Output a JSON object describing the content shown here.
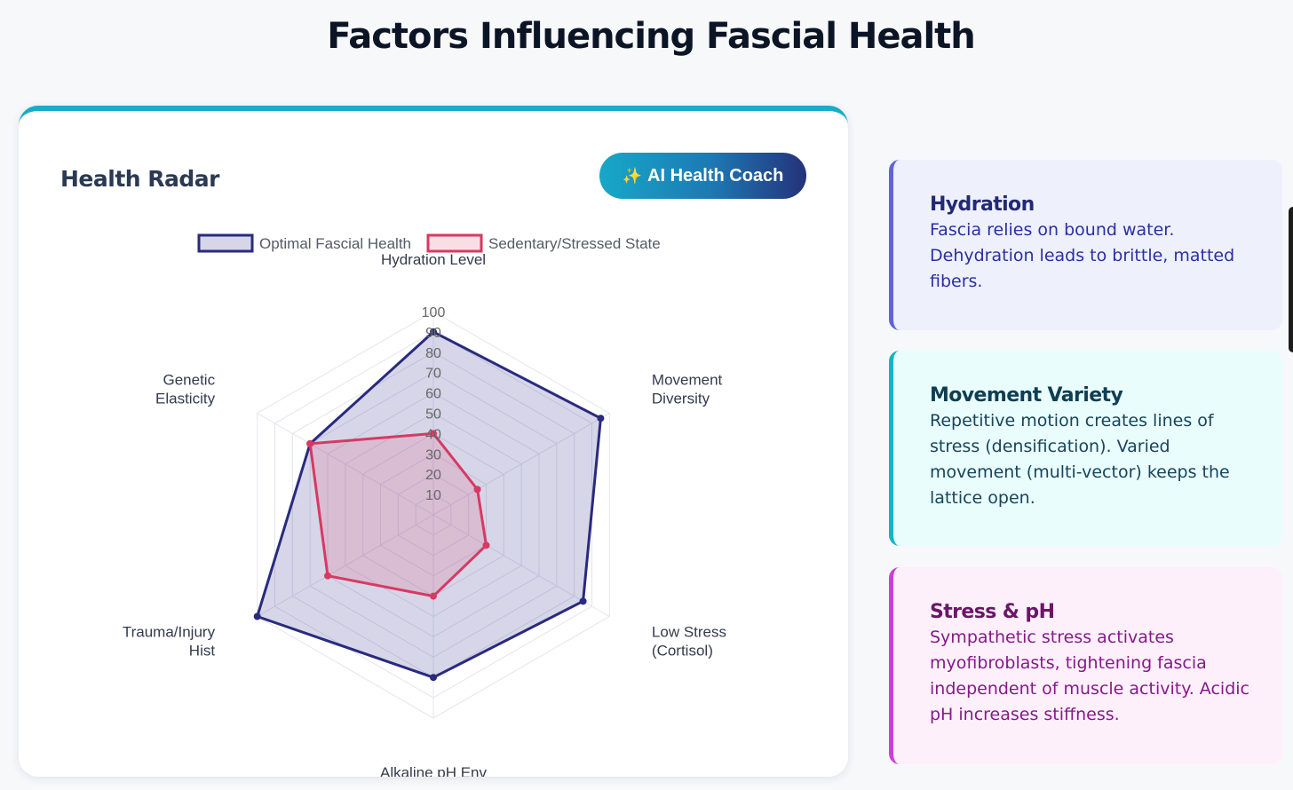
{
  "page": {
    "title": "Factors Influencing Fascial Health"
  },
  "chart_card": {
    "title": "Health Radar",
    "button": {
      "icon": "sparkles-icon",
      "icon_glyph": "✨",
      "label": "AI Health Coach"
    }
  },
  "chart_data": {
    "type": "radar",
    "axes": [
      "Hydration Level",
      "Movement Diversity",
      "Low Stress (Cortisol)",
      "Alkaline pH Env",
      "Trauma/Injury Hist",
      "Genetic Elasticity"
    ],
    "range": [
      0,
      100
    ],
    "ticks": [
      10,
      20,
      30,
      40,
      50,
      60,
      70,
      80,
      90,
      100
    ],
    "legend_position": "top",
    "series": [
      {
        "name": "Optimal Fascial Health",
        "values": [
          90,
          95,
          85,
          80,
          100,
          70
        ],
        "stroke": "#2a2a7f",
        "fill": "rgba(48,48,140,0.2)"
      },
      {
        "name": "Sedentary/Stressed State",
        "values": [
          40,
          25,
          30,
          40,
          60,
          70
        ],
        "stroke": "#d63a62",
        "fill": "rgba(230,90,130,0.2)"
      }
    ]
  },
  "info_cards": [
    {
      "title": "Hydration",
      "text": "Fascia relies on bound water. Dehydration leads to brittle, matted fibers.",
      "accent": "#6064d8"
    },
    {
      "title": "Movement Variety",
      "text": "Repetitive motion creates lines of stress (densification). Varied movement (multi-vector) keeps the lattice open.",
      "accent": "#12b4c8"
    },
    {
      "title": "Stress & pH",
      "text": "Sympathetic stress activates myofibroblasts, tightening fascia independent of muscle activity. Acidic pH increases stiffness.",
      "accent": "#cc3fd6"
    }
  ]
}
